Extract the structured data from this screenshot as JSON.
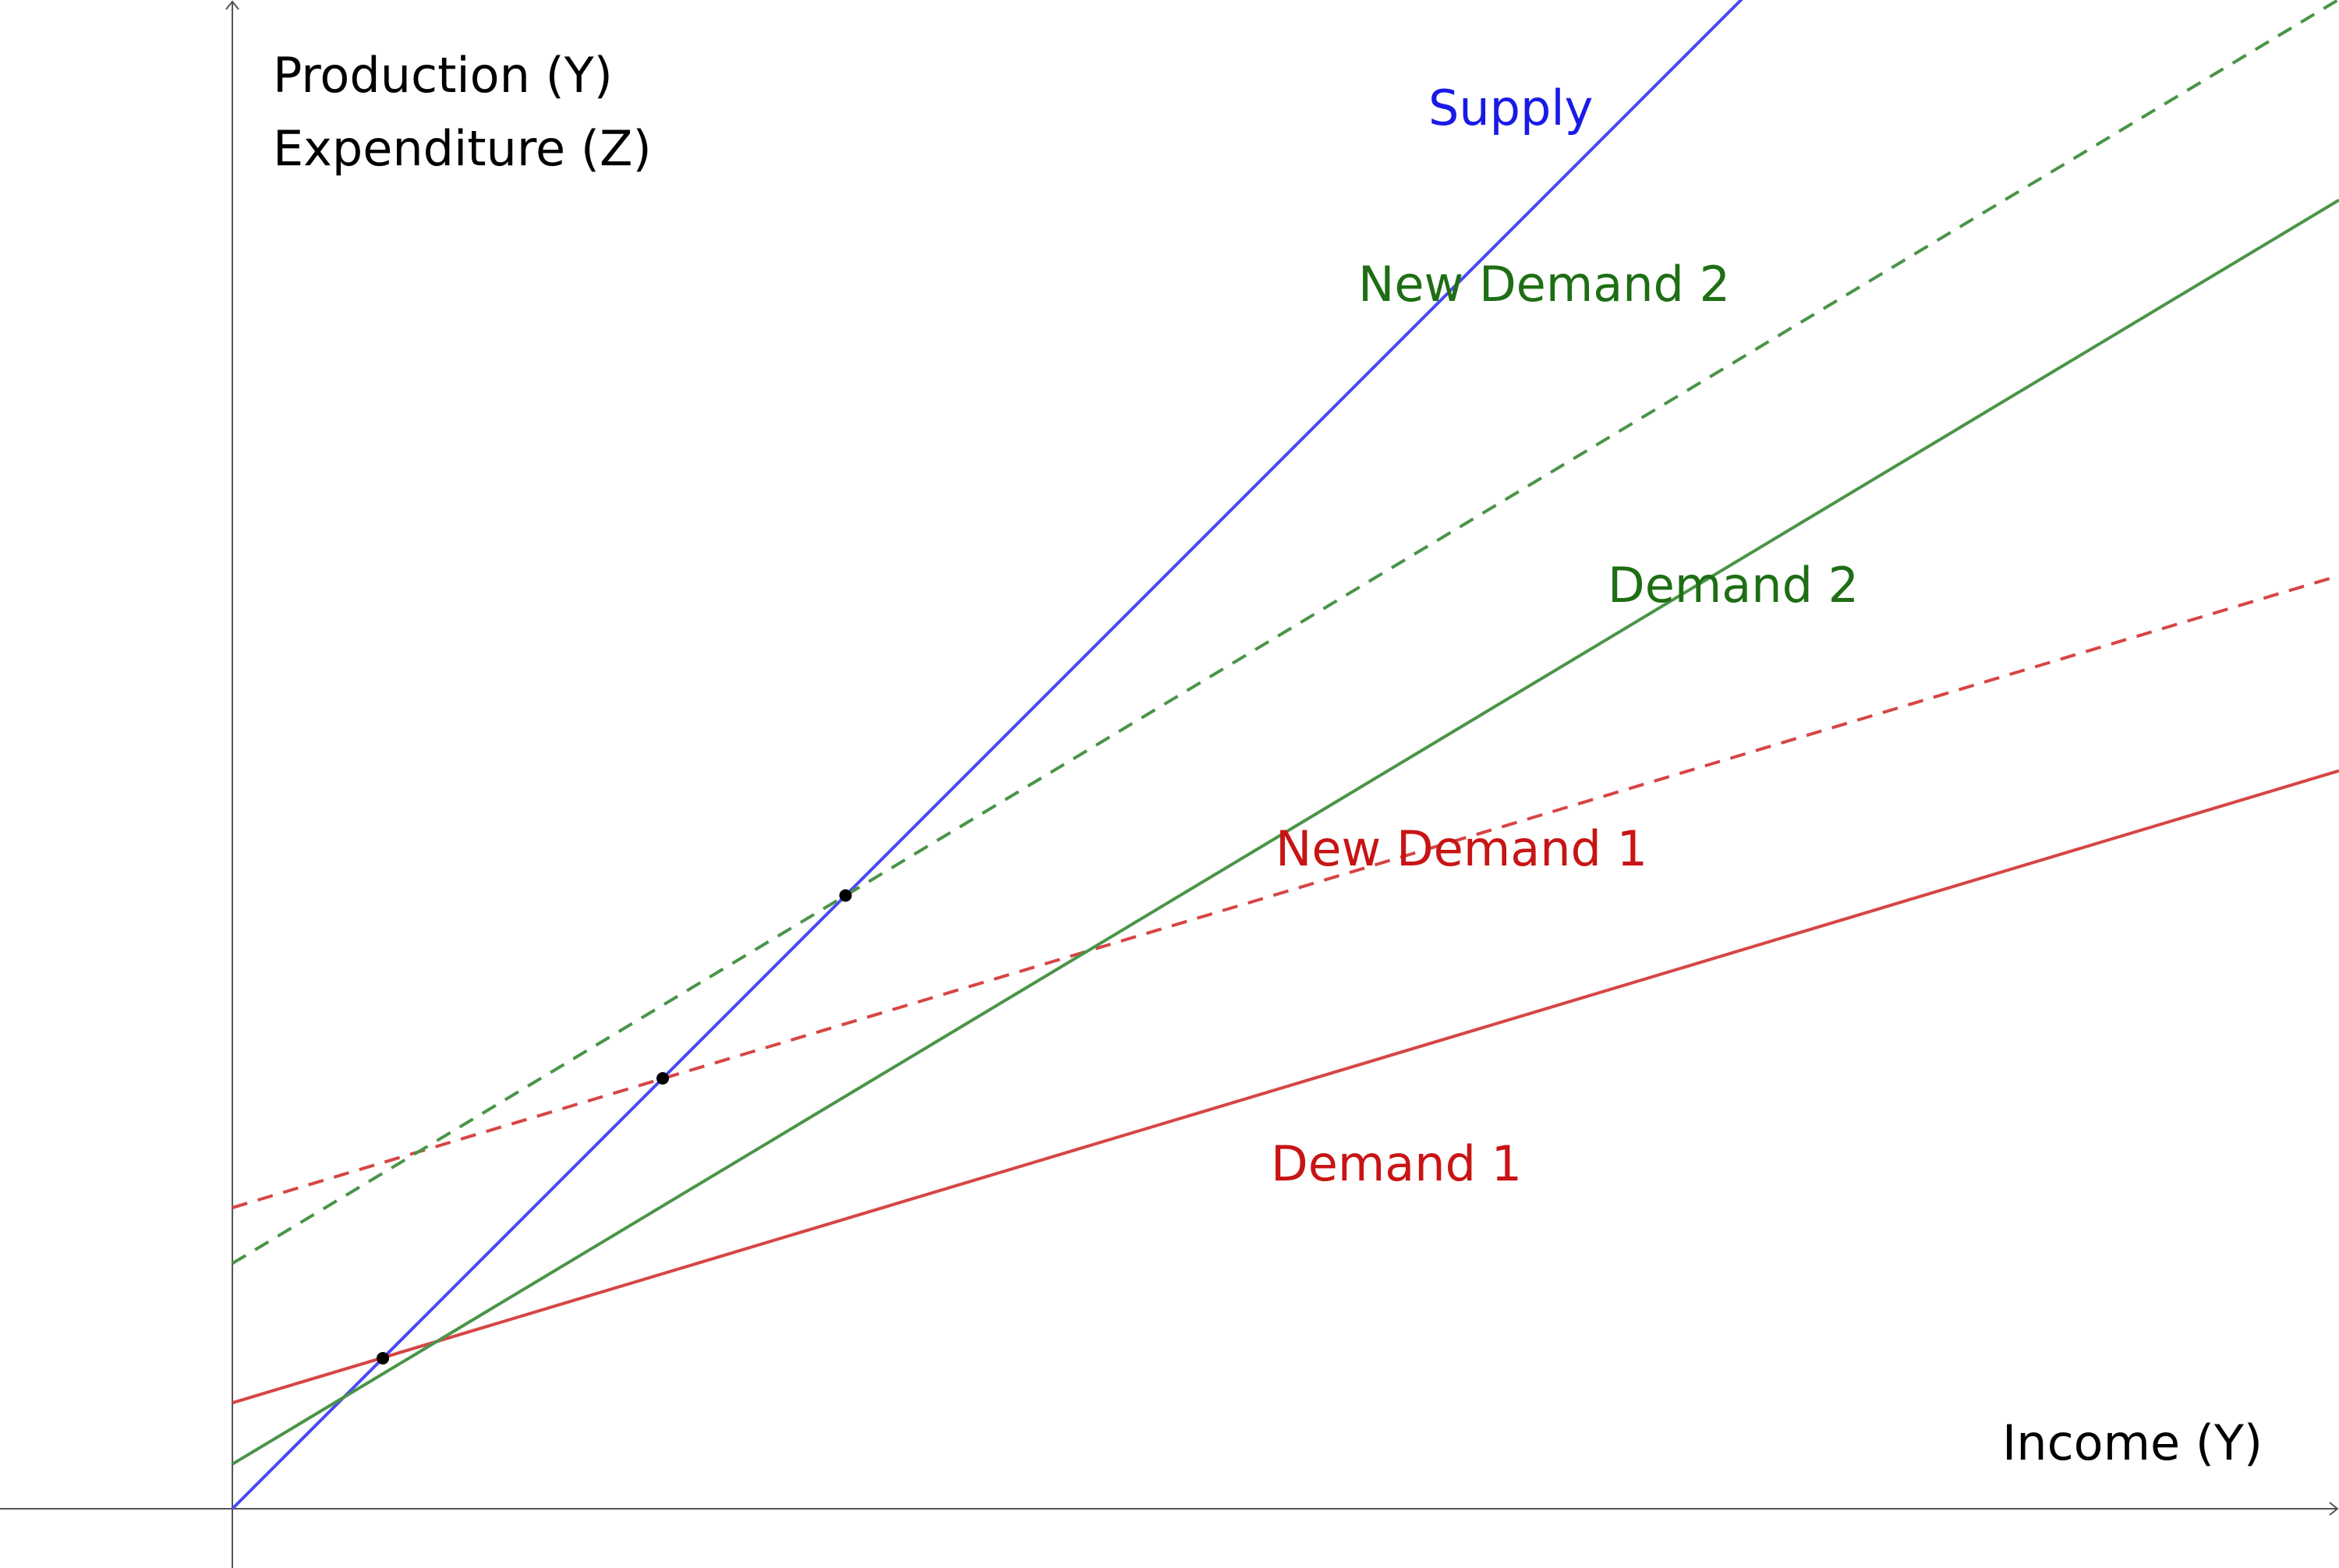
{
  "axes": {
    "y_label_line1": "Production (Y)",
    "y_label_line2": "Expenditure (Z)",
    "x_label": "Income (Y)"
  },
  "lines": [
    {
      "id": "supply",
      "label": "Supply",
      "color": "#4b4bf0",
      "label_color": "#1a1ae6",
      "style": "solid",
      "intercept": 0,
      "slope": 1.0
    },
    {
      "id": "demand1",
      "label": "Demand 1",
      "color": "#d64545",
      "label_color": "#c81414",
      "style": "solid",
      "intercept": 0.95,
      "slope": 0.3
    },
    {
      "id": "new-demand1",
      "label": "New Demand 1",
      "color": "#d64545",
      "label_color": "#c81414",
      "style": "dashed",
      "intercept": 2.7,
      "slope": 0.3
    },
    {
      "id": "demand2",
      "label": "Demand 2",
      "color": "#4a9448",
      "label_color": "#1e6e14",
      "style": "solid",
      "intercept": 0.4,
      "slope": 0.6
    },
    {
      "id": "new-demand2",
      "label": "New Demand 2",
      "color": "#4a9448",
      "label_color": "#1e6e14",
      "style": "dashed",
      "intercept": 2.2,
      "slope": 0.6
    }
  ],
  "equilibria": [
    {
      "x": 1.35,
      "y": 1.35
    },
    {
      "x": 3.86,
      "y": 3.86
    },
    {
      "x": 5.5,
      "y": 5.5
    }
  ]
}
